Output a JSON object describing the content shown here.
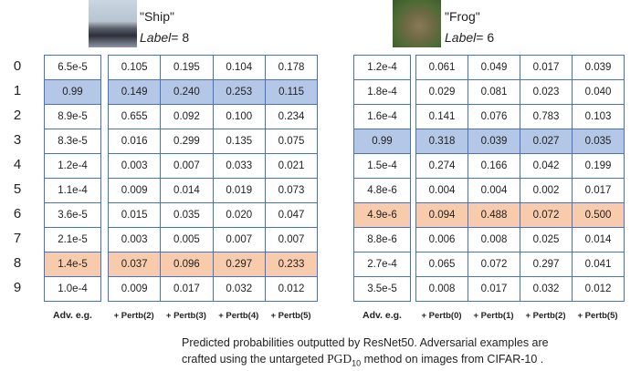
{
  "row_labels": [
    "0",
    "1",
    "2",
    "3",
    "4",
    "5",
    "6",
    "7",
    "8",
    "9"
  ],
  "panels": [
    {
      "title": "\"Ship\"",
      "label": "Label",
      "label_value": "= 8",
      "adv_header": "Adv. e.g.",
      "adv": [
        "6.5e-5",
        "0.99",
        "8.9e-5",
        "8.3e-5",
        "1.2e-4",
        "1.1e-4",
        "3.6e-5",
        "2.1e-5",
        "1.4e-5",
        "1.0e-4"
      ],
      "headers": [
        "+ Pertb(2)",
        "+ Pertb(3)",
        "+ Pertb(4)",
        "+ Pertb(5)"
      ],
      "rows": [
        [
          "0.105",
          "0.195",
          "0.104",
          "0.178"
        ],
        [
          "0.149",
          "0.240",
          "0.253",
          "0.115"
        ],
        [
          "0.655",
          "0.092",
          "0.100",
          "0.234"
        ],
        [
          "0.016",
          "0.299",
          "0.135",
          "0.075"
        ],
        [
          "0.003",
          "0.007",
          "0.033",
          "0.021"
        ],
        [
          "0.009",
          "0.014",
          "0.019",
          "0.073"
        ],
        [
          "0.015",
          "0.035",
          "0.020",
          "0.047"
        ],
        [
          "0.003",
          "0.005",
          "0.007",
          "0.007"
        ],
        [
          "0.037",
          "0.096",
          "0.297",
          "0.233"
        ],
        [
          "0.009",
          "0.017",
          "0.032",
          "0.012"
        ]
      ],
      "highlights": [
        {
          "row": 1,
          "color": "#b4c7e7"
        },
        {
          "row": 8,
          "color": "#f8cbad"
        }
      ]
    },
    {
      "title": "\"Frog\"",
      "label": "Label",
      "label_value": "= 6",
      "adv_header": "Adv. e.g.",
      "adv": [
        "1.2e-4",
        "1.8e-4",
        "1.6e-4",
        "0.99",
        "1.5e-4",
        "4.8e-6",
        "4.9e-6",
        "8.8e-6",
        "2.7e-4",
        "3.5e-5"
      ],
      "headers": [
        "+ Pertb(0)",
        "+ Pertb(1)",
        "+ Pertb(2)",
        "+ Pertb(5)"
      ],
      "rows": [
        [
          "0.061",
          "0.049",
          "0.017",
          "0.039"
        ],
        [
          "0.029",
          "0.081",
          "0.023",
          "0.040"
        ],
        [
          "0.141",
          "0.076",
          "0.783",
          "0.103"
        ],
        [
          "0.318",
          "0.039",
          "0.027",
          "0.035"
        ],
        [
          "0.274",
          "0.166",
          "0.042",
          "0.199"
        ],
        [
          "0.004",
          "0.004",
          "0.002",
          "0.017"
        ],
        [
          "0.094",
          "0.488",
          "0.072",
          "0.500"
        ],
        [
          "0.006",
          "0.008",
          "0.025",
          "0.014"
        ],
        [
          "0.065",
          "0.072",
          "0.297",
          "0.041"
        ],
        [
          "0.008",
          "0.017",
          "0.032",
          "0.012"
        ]
      ],
      "highlights": [
        {
          "row": 3,
          "color": "#b4c7e7"
        },
        {
          "row": 6,
          "color": "#f8cbad"
        }
      ]
    }
  ],
  "caption": {
    "line1": "Predicted probabilities outputted by ResNet50. Adversarial examples are",
    "line2_start": "crafted using the untargeted ",
    "method": "PGD",
    "method_sub": "10",
    "line2_end": " method on images from CIFAR-10 ."
  }
}
